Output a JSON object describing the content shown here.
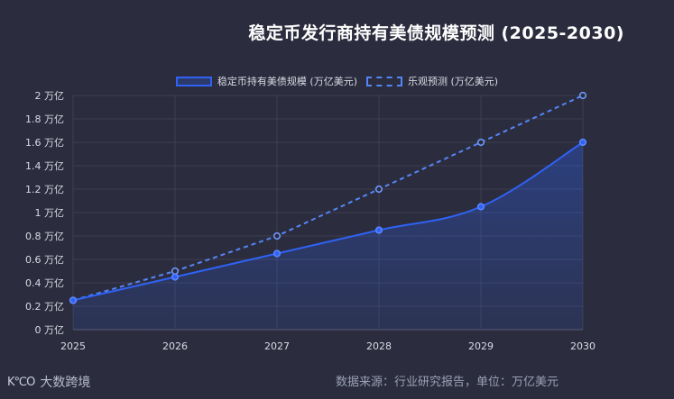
{
  "chart_data": {
    "type": "line",
    "title": "稳定币发行商持有美债规模预测 (2025-2030)",
    "categories": [
      "2025",
      "2026",
      "2027",
      "2028",
      "2029",
      "2030"
    ],
    "series": [
      {
        "name": "稳定币持有美债规模 (万亿美元)",
        "values": [
          0.25,
          0.45,
          0.65,
          0.85,
          1.05,
          1.6
        ],
        "style": "solid",
        "color": "#2f62f5",
        "area": true
      },
      {
        "name": "乐观预测 (万亿美元)",
        "values": [
          0.25,
          0.5,
          0.8,
          1.2,
          1.6,
          2.0
        ],
        "style": "dashed",
        "color": "#5585f5",
        "area": false
      }
    ],
    "yticks": [
      "0 万亿",
      "0.2 万亿",
      "0.4 万亿",
      "0.6 万亿",
      "0.8 万亿",
      "1 万亿",
      "1.2 万亿",
      "1.4 万亿",
      "1.6 万亿",
      "1.8 万亿",
      "2 万亿"
    ],
    "ylim": [
      0,
      2
    ],
    "grid": true,
    "legend_position": "top-center"
  },
  "footer": "数据来源：行业研究报告，单位：万亿美元",
  "logo": {
    "mark": "K℃O",
    "text": "大数跨境"
  }
}
